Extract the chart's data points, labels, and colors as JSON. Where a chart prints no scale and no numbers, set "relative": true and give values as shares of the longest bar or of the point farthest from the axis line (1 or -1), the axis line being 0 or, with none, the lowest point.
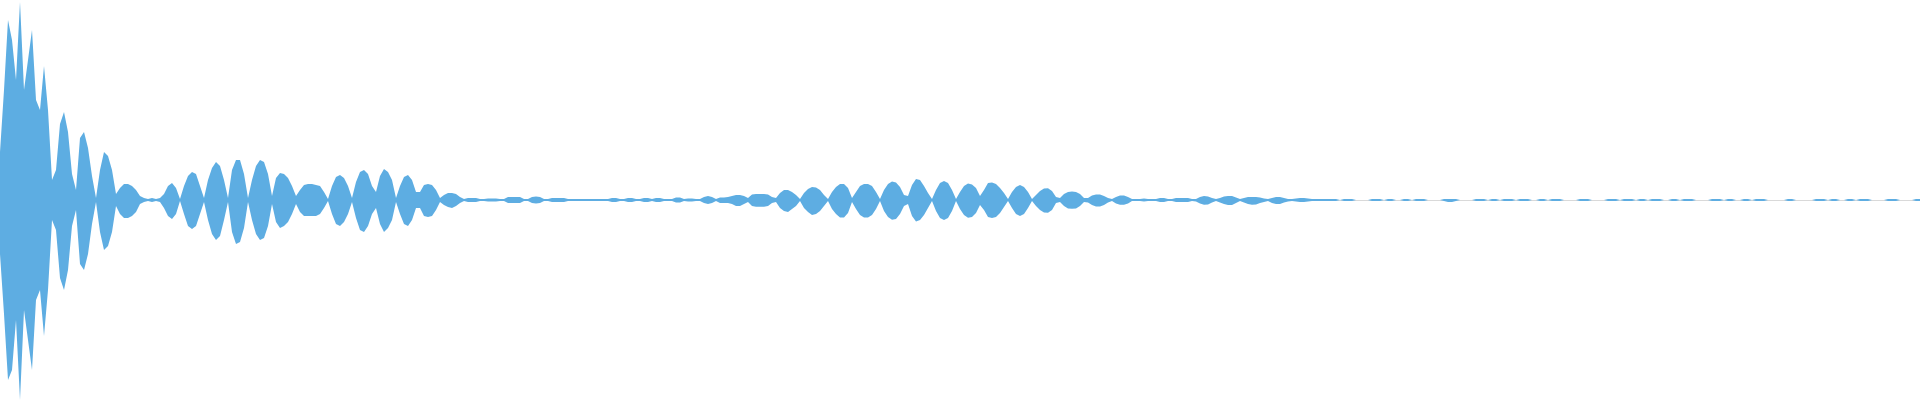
{
  "chart_data": {
    "type": "area",
    "relative": true,
    "categories": [
      null,
      null,
      null,
      null,
      null,
      null,
      null,
      null,
      null,
      null,
      null,
      null,
      null,
      null,
      null,
      null,
      null,
      null,
      null,
      null,
      null,
      null,
      null,
      null,
      null,
      null,
      null,
      null,
      null,
      null,
      null,
      null,
      null,
      null,
      null,
      null,
      null,
      null,
      null,
      null,
      null,
      null,
      null,
      null,
      null,
      null,
      null,
      null,
      null,
      null,
      null,
      null,
      null,
      null,
      null,
      null,
      null,
      null,
      null,
      null,
      null,
      null,
      null,
      null,
      null,
      null,
      null,
      null,
      null,
      null,
      null,
      null,
      null,
      null,
      null,
      null,
      null,
      null,
      null,
      null,
      null,
      null,
      null,
      null,
      null,
      null,
      null,
      null,
      null,
      null,
      null,
      null,
      null,
      null,
      null,
      null,
      null,
      null,
      null,
      null,
      null,
      null,
      null,
      null,
      null,
      null,
      null,
      null,
      null,
      null,
      null,
      null,
      null,
      null,
      null,
      null,
      null,
      null,
      null,
      null,
      null,
      null,
      null,
      null,
      null,
      null,
      null,
      null,
      null,
      null,
      null,
      null,
      null,
      null,
      null,
      null,
      null,
      null,
      null,
      null,
      null,
      null,
      null,
      null,
      null,
      null,
      null,
      null,
      null,
      null,
      null,
      null,
      null,
      null,
      null,
      null,
      null,
      null,
      null,
      null,
      null,
      null,
      null,
      null,
      null,
      null,
      null,
      null,
      null,
      null,
      null,
      null,
      null,
      null,
      null,
      null,
      null,
      null,
      null,
      null,
      null,
      null,
      null,
      null,
      null,
      null,
      null,
      null,
      null,
      null,
      null,
      null,
      null,
      null,
      null,
      null,
      null,
      null,
      null,
      null,
      null,
      null,
      null,
      null,
      null,
      null,
      null,
      null,
      null,
      null,
      null,
      null,
      null,
      null,
      null,
      null,
      null,
      null,
      null,
      null,
      null,
      null,
      null,
      null,
      null,
      null,
      null,
      null,
      null,
      null,
      null,
      null,
      null,
      null,
      null,
      null,
      null,
      null,
      null,
      null,
      null,
      null,
      null,
      null,
      null,
      null,
      null,
      null,
      null,
      null,
      null,
      null,
      null,
      null,
      null,
      null,
      null,
      null,
      null,
      null,
      null,
      null,
      null,
      null,
      null,
      null,
      null,
      null,
      null,
      null,
      null,
      null,
      null,
      null,
      null,
      null,
      null,
      null,
      null,
      null,
      null,
      null,
      null,
      null,
      null,
      null,
      null,
      null,
      null,
      null,
      null,
      null,
      null,
      null,
      null,
      null,
      null,
      null,
      null,
      null,
      null,
      null,
      null,
      null,
      null,
      null,
      null,
      null,
      null,
      null,
      null,
      null,
      null,
      null,
      null,
      null,
      null,
      null,
      null,
      null,
      null,
      null,
      null,
      null,
      null,
      null,
      null,
      null,
      null,
      null,
      null,
      null,
      null,
      null,
      null,
      null,
      null,
      null,
      null,
      null,
      null,
      null,
      null,
      null,
      null,
      null,
      null,
      null,
      null,
      null,
      null,
      null,
      null,
      null,
      null,
      null,
      null,
      null,
      null,
      null,
      null,
      null,
      null,
      null,
      null,
      null,
      null,
      null,
      null,
      null,
      null,
      null,
      null,
      null,
      null,
      null,
      null,
      null,
      null,
      null,
      null,
      null,
      null,
      null,
      null,
      null,
      null,
      null,
      null,
      null,
      null,
      null,
      null,
      null,
      null,
      null,
      null,
      null,
      null,
      null,
      null,
      null,
      null,
      null,
      null,
      null,
      null,
      null,
      null,
      null,
      null,
      null,
      null,
      null,
      null,
      null,
      null,
      null,
      null,
      null,
      null,
      null,
      null,
      null,
      null,
      null,
      null,
      null,
      null,
      null,
      null,
      null,
      null,
      null,
      null,
      null,
      null,
      null,
      null,
      null,
      null,
      null,
      null,
      null,
      null,
      null,
      null,
      null,
      null,
      null,
      null,
      null,
      null,
      null,
      null,
      null,
      null,
      null,
      null,
      null,
      null,
      null,
      null,
      null,
      null,
      null,
      null,
      null,
      null,
      null,
      null,
      null,
      null,
      null,
      null,
      null,
      null,
      null,
      null,
      null,
      null
    ],
    "series": [
      {
        "color": "#5dade2",
        "values": [
          0.24,
          0.55,
          0.9,
          0.8,
          0.6,
          0.99,
          0.55,
          0.7,
          0.85,
          0.5,
          0.45,
          0.67,
          0.45,
          0.1,
          0.15,
          0.38,
          0.44,
          0.34,
          0.13,
          0.05,
          0.31,
          0.34,
          0.26,
          0.12,
          0.01,
          0.15,
          0.24,
          0.22,
          0.15,
          0.03,
          0.06,
          0.08,
          0.08,
          0.07,
          0.05,
          0.02,
          0.01,
          0.005,
          0.01,
          0.005,
          0.01,
          0.03,
          0.07,
          0.085,
          0.06,
          0.005,
          0.07,
          0.12,
          0.14,
          0.13,
          0.07,
          0.01,
          0.1,
          0.16,
          0.19,
          0.17,
          0.1,
          0.01,
          0.15,
          0.2,
          0.2,
          0.13,
          0.01,
          0.1,
          0.17,
          0.2,
          0.19,
          0.13,
          0.02,
          0.11,
          0.135,
          0.13,
          0.11,
          0.07,
          0.02,
          0.05,
          0.075,
          0.08,
          0.08,
          0.075,
          0.07,
          0.04,
          0.005,
          0.07,
          0.115,
          0.125,
          0.11,
          0.07,
          0.01,
          0.09,
          0.14,
          0.15,
          0.13,
          0.07,
          0.04,
          0.12,
          0.155,
          0.14,
          0.1,
          0.01,
          0.07,
          0.115,
          0.125,
          0.1,
          0.04,
          0.04,
          0.075,
          0.08,
          0.075,
          0.05,
          0.01,
          0.025,
          0.035,
          0.035,
          0.03,
          0.015,
          0.005,
          0.01,
          0.01,
          0.01,
          0.005,
          0.005,
          0.008,
          0.008,
          0.008,
          0.005,
          0.005,
          0.015,
          0.015,
          0.015,
          0.015,
          0.005,
          0.005,
          0.015,
          0.018,
          0.015,
          0.005,
          0.005,
          0.01,
          0.01,
          0.01,
          0.01,
          0.005,
          0.005,
          0.005,
          0.005,
          0.005,
          0.005,
          0.005,
          0.005,
          0.005,
          0.005,
          0.005,
          0.01,
          0.01,
          0.005,
          0.005,
          0.01,
          0.01,
          0.005,
          0.005,
          0.01,
          0.01,
          0.005,
          0.01,
          0.01,
          0.005,
          0.005,
          0.005,
          0.012,
          0.013,
          0.005,
          0.008,
          0.008,
          0.005,
          0.005,
          0.015,
          0.02,
          0.015,
          0.005,
          0.012,
          0.013,
          0.015,
          0.02,
          0.025,
          0.025,
          0.02,
          0.01,
          0.028,
          0.03,
          0.03,
          0.03,
          0.028,
          0.015,
          0.01,
          0.035,
          0.05,
          0.05,
          0.04,
          0.025,
          0.005,
          0.035,
          0.055,
          0.065,
          0.062,
          0.05,
          0.025,
          0.005,
          0.04,
          0.065,
          0.08,
          0.08,
          0.06,
          0.01,
          0.04,
          0.07,
          0.08,
          0.08,
          0.07,
          0.04,
          0.005,
          0.05,
          0.08,
          0.092,
          0.088,
          0.065,
          0.025,
          0.02,
          0.075,
          0.105,
          0.1,
          0.07,
          0.035,
          0.005,
          0.05,
          0.085,
          0.095,
          0.085,
          0.05,
          0.005,
          0.04,
          0.07,
          0.082,
          0.078,
          0.06,
          0.02,
          0.05,
          0.085,
          0.087,
          0.08,
          0.06,
          0.035,
          0.005,
          0.04,
          0.065,
          0.075,
          0.065,
          0.04,
          0.005,
          0.025,
          0.045,
          0.057,
          0.059,
          0.045,
          0.015,
          0.01,
          0.03,
          0.04,
          0.042,
          0.04,
          0.03,
          0.01,
          0.01,
          0.022,
          0.028,
          0.028,
          0.02,
          0.01,
          0.005,
          0.015,
          0.022,
          0.022,
          0.015,
          0.005,
          0.005,
          0.005,
          0.007,
          0.005,
          0.005,
          0.005,
          0.01,
          0.01,
          0.005,
          0.005,
          0.01,
          0.01,
          0.01,
          0.01,
          0.005,
          0.005,
          0.015,
          0.02,
          0.018,
          0.01,
          0.005,
          0.01,
          0.017,
          0.02,
          0.02,
          0.013,
          0.005,
          0.01,
          0.015,
          0.015,
          0.015,
          0.012,
          0.008,
          0.005,
          0.01,
          0.015,
          0.015,
          0.01,
          0.005,
          0.005,
          0.008,
          0.01,
          0.01,
          0.008,
          0.005,
          0.005,
          0.005,
          0.005,
          0.005,
          0.005,
          0.005,
          0,
          0.005,
          0.005,
          0.005,
          0,
          0,
          0,
          0,
          0.005,
          0.005,
          0.005,
          0,
          0.005,
          0.005,
          0,
          0,
          0.005,
          0.005,
          0,
          0.005,
          0.005,
          0.005,
          0,
          0,
          0,
          0,
          0.005,
          0.005,
          0.005,
          0.005,
          0,
          0,
          0,
          0,
          0.005,
          0.005,
          0.005,
          0,
          0.005,
          0.005,
          0,
          0.005,
          0.005,
          0.005,
          0,
          0.005,
          0.005,
          0.005,
          0,
          0,
          0.005,
          0.005,
          0,
          0.005,
          0.005,
          0.005,
          0,
          0,
          0,
          0,
          0.005,
          0.005,
          0.005,
          0,
          0,
          0,
          0,
          0.005,
          0.005,
          0.005,
          0,
          0.005,
          0.005,
          0.005,
          0,
          0.005,
          0.005,
          0,
          0.005,
          0.005,
          0.005,
          0,
          0,
          0.005,
          0.005,
          0,
          0.005,
          0.005,
          0.005,
          0,
          0,
          0,
          0,
          0.005,
          0.005,
          0.005,
          0,
          0.005,
          0.005,
          0,
          0,
          0.005,
          0.005,
          0,
          0.005,
          0.005,
          0.005,
          0,
          0,
          0,
          0,
          0,
          0.005,
          0.005,
          0,
          0,
          0,
          0,
          0,
          0.005,
          0.005,
          0.005,
          0,
          0.005,
          0.005,
          0,
          0,
          0.005,
          0.005,
          0,
          0.005,
          0.005,
          0.005,
          0,
          0,
          0,
          0,
          0.005,
          0.005,
          0.005,
          0,
          0,
          0,
          0,
          0.005,
          0.005
        ]
      },
      {
        "color": "#5eade2",
        "values": [
          -0.27,
          -0.57,
          -0.9,
          -0.85,
          -0.6,
          -1,
          -0.55,
          -0.7,
          -0.85,
          -0.5,
          -0.45,
          -0.68,
          -0.45,
          -0.1,
          -0.15,
          -0.39,
          -0.45,
          -0.35,
          -0.13,
          -0.05,
          -0.32,
          -0.35,
          -0.27,
          -0.12,
          -0.01,
          -0.16,
          -0.25,
          -0.23,
          -0.16,
          -0.03,
          -0.07,
          -0.09,
          -0.09,
          -0.08,
          -0.06,
          -0.02,
          -0.01,
          -0.005,
          -0.01,
          -0.005,
          -0.01,
          -0.04,
          -0.08,
          -0.095,
          -0.07,
          -0.005,
          -0.07,
          -0.13,
          -0.145,
          -0.13,
          -0.07,
          -0.01,
          -0.1,
          -0.17,
          -0.2,
          -0.18,
          -0.1,
          -0.01,
          -0.16,
          -0.22,
          -0.21,
          -0.14,
          -0.01,
          -0.1,
          -0.17,
          -0.2,
          -0.19,
          -0.13,
          -0.02,
          -0.11,
          -0.14,
          -0.13,
          -0.11,
          -0.07,
          -0.02,
          -0.06,
          -0.08,
          -0.08,
          -0.08,
          -0.08,
          -0.07,
          -0.04,
          -0.005,
          -0.07,
          -0.12,
          -0.13,
          -0.11,
          -0.07,
          -0.01,
          -0.09,
          -0.15,
          -0.16,
          -0.13,
          -0.07,
          -0.04,
          -0.12,
          -0.16,
          -0.14,
          -0.1,
          -0.01,
          -0.07,
          -0.12,
          -0.13,
          -0.1,
          -0.04,
          -0.04,
          -0.08,
          -0.085,
          -0.08,
          -0.05,
          -0.01,
          -0.025,
          -0.035,
          -0.04,
          -0.03,
          -0.015,
          -0.005,
          -0.01,
          -0.01,
          -0.01,
          -0.005,
          -0.005,
          -0.008,
          -0.008,
          -0.008,
          -0.005,
          -0.005,
          -0.015,
          -0.015,
          -0.015,
          -0.015,
          -0.005,
          -0.005,
          -0.015,
          -0.018,
          -0.015,
          -0.005,
          -0.005,
          -0.01,
          -0.01,
          -0.01,
          -0.01,
          -0.005,
          -0.005,
          -0.005,
          -0.005,
          -0.005,
          -0.005,
          -0.005,
          -0.005,
          -0.005,
          -0.005,
          -0.005,
          -0.01,
          -0.01,
          -0.005,
          -0.005,
          -0.01,
          -0.01,
          -0.005,
          -0.005,
          -0.01,
          -0.01,
          -0.005,
          -0.01,
          -0.01,
          -0.005,
          -0.005,
          -0.005,
          -0.012,
          -0.013,
          -0.005,
          -0.008,
          -0.008,
          -0.005,
          -0.005,
          -0.015,
          -0.02,
          -0.015,
          -0.005,
          -0.015,
          -0.015,
          -0.015,
          -0.02,
          -0.03,
          -0.03,
          -0.02,
          -0.01,
          -0.03,
          -0.034,
          -0.034,
          -0.034,
          -0.03,
          -0.015,
          -0.01,
          -0.04,
          -0.055,
          -0.06,
          -0.045,
          -0.03,
          -0.005,
          -0.04,
          -0.06,
          -0.075,
          -0.07,
          -0.055,
          -0.03,
          -0.005,
          -0.045,
          -0.07,
          -0.087,
          -0.087,
          -0.065,
          -0.01,
          -0.045,
          -0.075,
          -0.088,
          -0.088,
          -0.075,
          -0.045,
          -0.005,
          -0.055,
          -0.085,
          -0.099,
          -0.095,
          -0.07,
          -0.03,
          -0.02,
          -0.08,
          -0.108,
          -0.1,
          -0.075,
          -0.04,
          -0.005,
          -0.055,
          -0.09,
          -0.1,
          -0.09,
          -0.055,
          -0.005,
          -0.045,
          -0.075,
          -0.089,
          -0.085,
          -0.065,
          -0.025,
          -0.05,
          -0.085,
          -0.09,
          -0.085,
          -0.065,
          -0.035,
          -0.005,
          -0.04,
          -0.07,
          -0.08,
          -0.07,
          -0.04,
          -0.005,
          -0.03,
          -0.05,
          -0.062,
          -0.064,
          -0.05,
          -0.015,
          -0.01,
          -0.03,
          -0.042,
          -0.044,
          -0.042,
          -0.03,
          -0.01,
          -0.012,
          -0.025,
          -0.033,
          -0.032,
          -0.025,
          -0.012,
          -0.005,
          -0.017,
          -0.024,
          -0.024,
          -0.017,
          -0.005,
          -0.005,
          -0.005,
          -0.007,
          -0.005,
          -0.005,
          -0.005,
          -0.01,
          -0.01,
          -0.005,
          -0.005,
          -0.01,
          -0.01,
          -0.01,
          -0.01,
          -0.005,
          -0.008,
          -0.018,
          -0.024,
          -0.022,
          -0.012,
          -0.005,
          -0.012,
          -0.02,
          -0.025,
          -0.025,
          -0.015,
          -0.005,
          -0.013,
          -0.02,
          -0.024,
          -0.022,
          -0.015,
          -0.01,
          -0.005,
          -0.015,
          -0.02,
          -0.02,
          -0.013,
          -0.008,
          -0.005,
          -0.008,
          -0.01,
          -0.01,
          -0.008,
          -0.005,
          -0.005,
          -0.005,
          -0.005,
          -0.005,
          -0.005,
          -0.005,
          0,
          -0.005,
          -0.005,
          -0.005,
          0,
          0,
          0,
          0,
          -0.005,
          -0.005,
          -0.005,
          0,
          -0.005,
          -0.005,
          0,
          0,
          -0.005,
          -0.005,
          0,
          -0.005,
          -0.005,
          -0.005,
          0,
          0,
          0,
          0,
          -0.005,
          -0.01,
          -0.01,
          -0.005,
          0,
          0,
          0,
          0,
          -0.005,
          -0.005,
          -0.005,
          0,
          -0.005,
          -0.005,
          0,
          -0.005,
          -0.005,
          -0.005,
          0,
          -0.005,
          -0.005,
          -0.005,
          0,
          0,
          -0.005,
          -0.005,
          0,
          -0.005,
          -0.005,
          -0.005,
          0,
          0,
          0,
          0,
          -0.005,
          -0.005,
          -0.005,
          0,
          0,
          0,
          0,
          -0.005,
          -0.005,
          -0.005,
          0,
          -0.005,
          -0.005,
          -0.005,
          0,
          -0.005,
          -0.005,
          0,
          -0.005,
          -0.005,
          -0.005,
          0,
          0,
          -0.005,
          -0.005,
          0,
          -0.005,
          -0.005,
          -0.005,
          0,
          0,
          0,
          0,
          -0.005,
          -0.005,
          -0.005,
          0,
          -0.005,
          -0.005,
          0,
          0,
          -0.005,
          -0.005,
          0,
          -0.005,
          -0.005,
          -0.005,
          0,
          0,
          0,
          0,
          0,
          -0.005,
          -0.005,
          0,
          0,
          0,
          0,
          0,
          -0.005,
          -0.005,
          -0.005,
          0,
          -0.005,
          -0.005,
          0,
          0,
          -0.005,
          -0.005,
          0,
          -0.005,
          -0.005,
          -0.005,
          0,
          0,
          0,
          0,
          -0.005,
          -0.005,
          -0.005,
          0,
          0,
          0,
          0,
          -0.005,
          -0.005
        ]
      }
    ]
  }
}
